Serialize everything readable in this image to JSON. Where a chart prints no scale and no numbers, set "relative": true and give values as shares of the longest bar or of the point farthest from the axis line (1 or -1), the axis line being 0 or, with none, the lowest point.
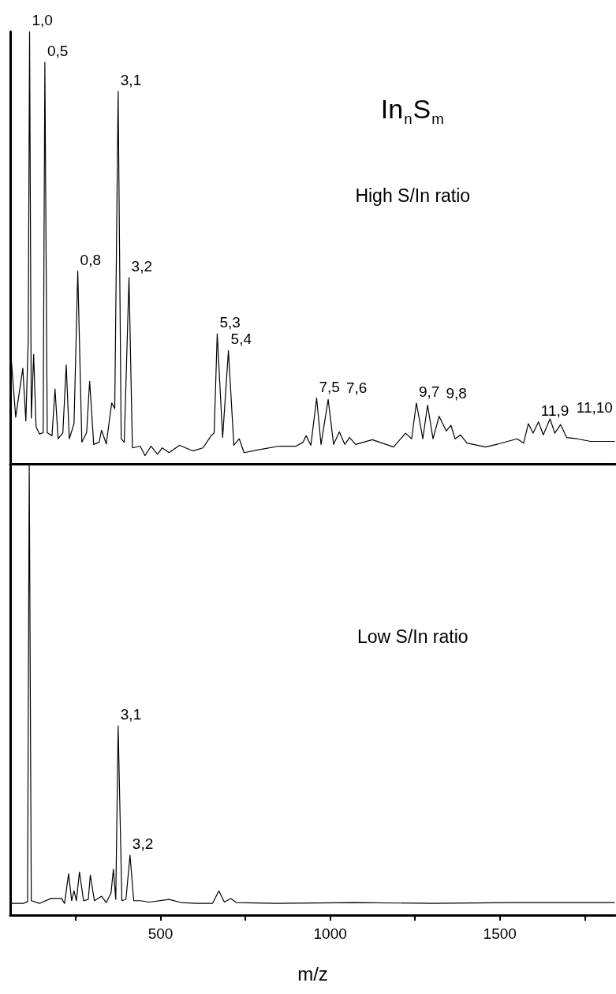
{
  "chart_data": [
    {
      "type": "line",
      "relative": true,
      "color": "#000000",
      "marker": "none",
      "line_style": "solid",
      "tick_labels": false,
      "xlim": [
        57,
        1840
      ],
      "xticks": [
        {
          "value": 250,
          "label": null
        },
        {
          "value": 500,
          "label": null
        },
        {
          "value": 750,
          "label": null
        },
        {
          "value": 1000,
          "label": null
        },
        {
          "value": 1250,
          "label": null
        },
        {
          "value": 1500,
          "label": null
        },
        {
          "value": 1750,
          "label": null
        }
      ],
      "x": [
        59,
        73,
        94,
        103,
        110,
        114,
        119,
        126,
        133,
        143,
        154,
        159,
        166,
        180,
        189,
        198,
        212,
        222,
        231,
        245,
        256,
        268,
        282,
        291,
        303,
        319,
        326,
        340,
        356,
        365,
        375,
        384,
        393,
        407,
        417,
        440,
        454,
        472,
        491,
        505,
        525,
        556,
        595,
        625,
        649,
        658,
        667,
        683,
        700,
        716,
        732,
        746,
        792,
        850,
        899,
        920,
        929,
        943,
        960,
        973,
        994,
        1010,
        1027,
        1043,
        1057,
        1075,
        1124,
        1187,
        1222,
        1240,
        1254,
        1273,
        1287,
        1303,
        1321,
        1342,
        1356,
        1368,
        1384,
        1403,
        1458,
        1495,
        1551,
        1570,
        1584,
        1598,
        1614,
        1628,
        1648,
        1662,
        1679,
        1697,
        1728,
        1767,
        1839
      ],
      "values": [
        0.253,
        0.108,
        0.221,
        0.099,
        0.288,
        1.0,
        0.106,
        0.253,
        0.086,
        0.069,
        0.072,
        0.929,
        0.072,
        0.065,
        0.173,
        0.058,
        0.072,
        0.229,
        0.058,
        0.093,
        0.446,
        0.05,
        0.072,
        0.191,
        0.045,
        0.05,
        0.078,
        0.046,
        0.141,
        0.128,
        0.862,
        0.058,
        0.05,
        0.431,
        0.037,
        0.041,
        0.019,
        0.041,
        0.022,
        0.037,
        0.026,
        0.043,
        0.03,
        0.037,
        0.065,
        0.072,
        0.301,
        0.061,
        0.262,
        0.043,
        0.058,
        0.026,
        0.033,
        0.041,
        0.041,
        0.05,
        0.065,
        0.043,
        0.152,
        0.045,
        0.149,
        0.045,
        0.074,
        0.045,
        0.061,
        0.045,
        0.056,
        0.039,
        0.071,
        0.058,
        0.141,
        0.058,
        0.136,
        0.058,
        0.11,
        0.076,
        0.089,
        0.058,
        0.067,
        0.048,
        0.039,
        0.046,
        0.058,
        0.048,
        0.093,
        0.071,
        0.097,
        0.067,
        0.104,
        0.071,
        0.091,
        0.061,
        0.058,
        0.052,
        0.052
      ],
      "annotations": [
        {
          "text": "1,0",
          "x": 114,
          "y": 1.0
        },
        {
          "text": "0,5",
          "x": 159,
          "y": 0.929
        },
        {
          "text": "0,8",
          "x": 256,
          "y": 0.446
        },
        {
          "text": "3,1",
          "x": 375,
          "y": 0.862
        },
        {
          "text": "3,2",
          "x": 407,
          "y": 0.431
        },
        {
          "text": "5,3",
          "x": 667,
          "y": 0.301
        },
        {
          "text": "5,4",
          "x": 700,
          "y": 0.262
        },
        {
          "text": "7,5",
          "x": 960,
          "y": 0.152
        },
        {
          "text": "7,6",
          "x": 994,
          "y": 0.149
        },
        {
          "text": "9,7",
          "x": 1254,
          "y": 0.141
        },
        {
          "text": "9,8",
          "x": 1287,
          "y": 0.136
        },
        {
          "text": "11,9",
          "x": 1614,
          "y": 0.097
        },
        {
          "text": "11,10",
          "x": 1648,
          "y": 0.104
        },
        "In$_{n}$S$_{m}$",
        "High S/In ratio"
      ]
    },
    {
      "type": "line",
      "relative": true,
      "color": "#000000",
      "marker": "none",
      "line_style": "solid",
      "tick_labels": "x",
      "xlabel": "m/z",
      "xlim": [
        57,
        1840
      ],
      "xticks": [
        {
          "value": 250,
          "label": null
        },
        500,
        {
          "value": 750,
          "label": null
        },
        1000,
        {
          "value": 1250,
          "label": null
        },
        1500,
        {
          "value": 1750,
          "label": null
        }
      ],
      "x": [
        59,
        96,
        108,
        113,
        119,
        143,
        177,
        208,
        217,
        229,
        238,
        245,
        252,
        261,
        273,
        287,
        293,
        305,
        326,
        340,
        354,
        361,
        368,
        375,
        386,
        398,
        410,
        421,
        440,
        467,
        525,
        560,
        607,
        653,
        672,
        688,
        707,
        723,
        839,
        1071,
        1303,
        1535,
        1839
      ],
      "values": [
        0.026,
        0.026,
        0.03,
        1.0,
        0.032,
        0.026,
        0.037,
        0.037,
        0.026,
        0.092,
        0.032,
        0.054,
        0.032,
        0.096,
        0.032,
        0.035,
        0.089,
        0.032,
        0.042,
        0.028,
        0.049,
        0.102,
        0.035,
        0.421,
        0.032,
        0.035,
        0.133,
        0.032,
        0.032,
        0.029,
        0.035,
        0.028,
        0.026,
        0.026,
        0.054,
        0.029,
        0.037,
        0.028,
        0.026,
        0.028,
        0.026,
        0.028,
        0.028
      ],
      "annotations": [
        {
          "text": "3,1",
          "x": 375,
          "y": 0.421
        },
        {
          "text": "3,2",
          "x": 410,
          "y": 0.133
        },
        "Low S/In ratio"
      ]
    }
  ]
}
